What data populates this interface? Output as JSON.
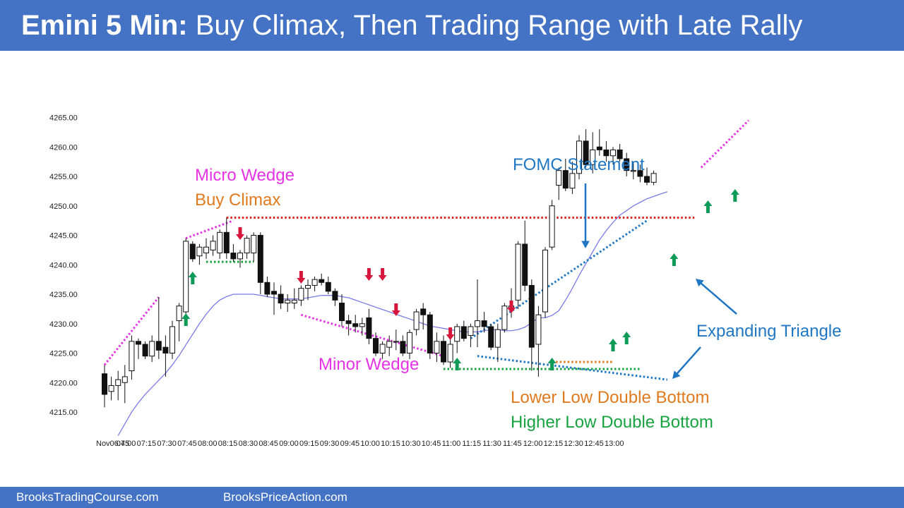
{
  "header": {
    "title_bold": "Emini 5 Min:",
    "title_rest": " Buy Climax, Then Trading Range with Late Rally"
  },
  "footer": {
    "left": "BrooksTradingCourse.com",
    "right": "BrooksPriceAction.com"
  },
  "colors": {
    "banner": "#4472c4",
    "moving_average": "#7b7be8",
    "bull_arrow": "#0e9a57",
    "bear_arrow": "#d6163a",
    "magenta": "#e633e6",
    "orange": "#e07a1f",
    "green": "#17a340",
    "blue": "#1f77c4",
    "red": "#e01e1e"
  },
  "annotations": {
    "micro_wedge": "Micro Wedge",
    "buy_climax": "Buy Climax",
    "minor_wedge": "Minor Wedge",
    "fomc": "FOMC Statement",
    "expanding_triangle": "Expanding Triangle",
    "lower_low_db": "Lower Low Double Bottom",
    "higher_low_db": "Higher Low Double Bottom"
  },
  "chart_data": {
    "type": "candlestick",
    "timeframe_minutes": 5,
    "ylim": [
      4212,
      4266
    ],
    "yticks": [
      4215,
      4220,
      4225,
      4230,
      4235,
      4240,
      4245,
      4250,
      4255,
      4260,
      4265
    ],
    "ytick_labels": [
      "4215.00",
      "4220.00",
      "4225.00",
      "4230.00",
      "4235.00",
      "4240.00",
      "4245.00",
      "4250.00",
      "4255.00",
      "4260.00",
      "4265.00"
    ],
    "xticks": [
      "Nov06:45",
      "07:00",
      "07:15",
      "07:30",
      "07:45",
      "08:00",
      "08:15",
      "08:30",
      "08:45",
      "09:00",
      "09:15",
      "09:30",
      "09:45",
      "10:00",
      "10:15",
      "10:30",
      "10:45",
      "11:00",
      "11:15",
      "11:30",
      "11:45",
      "12:00",
      "12:15",
      "12:30",
      "12:45",
      "13:00"
    ],
    "candles": [
      {
        "o": 4221.5,
        "h": 4223.0,
        "l": 4215.8,
        "c": 4218.0
      },
      {
        "o": 4218.5,
        "h": 4221.0,
        "l": 4217.0,
        "c": 4219.5
      },
      {
        "o": 4219.5,
        "h": 4222.0,
        "l": 4217.0,
        "c": 4220.5
      },
      {
        "o": 4220.0,
        "h": 4223.0,
        "l": 4216.5,
        "c": 4221.0
      },
      {
        "o": 4222.0,
        "h": 4228.0,
        "l": 4220.5,
        "c": 4227.0
      },
      {
        "o": 4227.0,
        "h": 4227.5,
        "l": 4224.0,
        "c": 4226.5
      },
      {
        "o": 4226.5,
        "h": 4227.0,
        "l": 4224.0,
        "c": 4224.5
      },
      {
        "o": 4224.5,
        "h": 4228.0,
        "l": 4223.5,
        "c": 4227.0
      },
      {
        "o": 4227.0,
        "h": 4234.5,
        "l": 4224.0,
        "c": 4225.5
      },
      {
        "o": 4226.0,
        "h": 4228.0,
        "l": 4221.0,
        "c": 4225.0
      },
      {
        "o": 4225.0,
        "h": 4230.5,
        "l": 4224.0,
        "c": 4229.5
      },
      {
        "o": 4230.5,
        "h": 4233.5,
        "l": 4227.0,
        "c": 4233.0
      },
      {
        "o": 4232.0,
        "h": 4244.5,
        "l": 4231.5,
        "c": 4244.0
      },
      {
        "o": 4243.5,
        "h": 4244.0,
        "l": 4240.5,
        "c": 4241.0
      },
      {
        "o": 4241.5,
        "h": 4243.5,
        "l": 4240.0,
        "c": 4243.0
      },
      {
        "o": 4242.0,
        "h": 4244.5,
        "l": 4241.0,
        "c": 4243.0
      },
      {
        "o": 4242.5,
        "h": 4245.0,
        "l": 4241.5,
        "c": 4244.0
      },
      {
        "o": 4242.0,
        "h": 4246.0,
        "l": 4241.0,
        "c": 4245.5
      },
      {
        "o": 4245.5,
        "h": 4248.0,
        "l": 4241.0,
        "c": 4242.0
      },
      {
        "o": 4242.0,
        "h": 4243.5,
        "l": 4240.5,
        "c": 4241.0
      },
      {
        "o": 4241.0,
        "h": 4242.5,
        "l": 4239.5,
        "c": 4242.0
      },
      {
        "o": 4242.0,
        "h": 4245.0,
        "l": 4241.0,
        "c": 4244.5
      },
      {
        "o": 4242.0,
        "h": 4245.5,
        "l": 4240.5,
        "c": 4245.0
      },
      {
        "o": 4245.0,
        "h": 4245.5,
        "l": 4235.0,
        "c": 4237.0
      },
      {
        "o": 4237.0,
        "h": 4238.0,
        "l": 4234.5,
        "c": 4235.0
      },
      {
        "o": 4235.5,
        "h": 4237.0,
        "l": 4231.5,
        "c": 4235.0
      },
      {
        "o": 4235.0,
        "h": 4236.5,
        "l": 4232.5,
        "c": 4233.5
      },
      {
        "o": 4233.5,
        "h": 4235.0,
        "l": 4232.0,
        "c": 4234.0
      },
      {
        "o": 4233.5,
        "h": 4236.0,
        "l": 4232.5,
        "c": 4234.0
      },
      {
        "o": 4234.0,
        "h": 4236.5,
        "l": 4233.0,
        "c": 4236.0
      },
      {
        "o": 4236.0,
        "h": 4237.5,
        "l": 4234.0,
        "c": 4236.5
      },
      {
        "o": 4236.5,
        "h": 4238.0,
        "l": 4235.5,
        "c": 4237.5
      },
      {
        "o": 4237.5,
        "h": 4238.5,
        "l": 4236.5,
        "c": 4237.0
      },
      {
        "o": 4237.0,
        "h": 4238.0,
        "l": 4235.0,
        "c": 4235.5
      },
      {
        "o": 4235.5,
        "h": 4236.0,
        "l": 4233.0,
        "c": 4234.0
      },
      {
        "o": 4233.5,
        "h": 4235.0,
        "l": 4229.5,
        "c": 4230.5
      },
      {
        "o": 4230.5,
        "h": 4231.5,
        "l": 4228.0,
        "c": 4230.0
      },
      {
        "o": 4230.0,
        "h": 4231.5,
        "l": 4228.5,
        "c": 4229.5
      },
      {
        "o": 4229.5,
        "h": 4231.0,
        "l": 4228.0,
        "c": 4230.0
      },
      {
        "o": 4231.0,
        "h": 4232.5,
        "l": 4226.5,
        "c": 4227.5
      },
      {
        "o": 4227.5,
        "h": 4228.5,
        "l": 4224.5,
        "c": 4225.0
      },
      {
        "o": 4225.0,
        "h": 4227.0,
        "l": 4224.0,
        "c": 4226.5
      },
      {
        "o": 4226.0,
        "h": 4228.0,
        "l": 4224.5,
        "c": 4227.0
      },
      {
        "o": 4227.0,
        "h": 4229.0,
        "l": 4225.5,
        "c": 4227.0
      },
      {
        "o": 4227.0,
        "h": 4228.0,
        "l": 4224.5,
        "c": 4225.0
      },
      {
        "o": 4225.0,
        "h": 4229.0,
        "l": 4224.0,
        "c": 4228.5
      },
      {
        "o": 4229.0,
        "h": 4232.5,
        "l": 4228.0,
        "c": 4232.0
      },
      {
        "o": 4232.5,
        "h": 4233.5,
        "l": 4229.0,
        "c": 4231.5
      },
      {
        "o": 4231.5,
        "h": 4232.0,
        "l": 4224.0,
        "c": 4225.0
      },
      {
        "o": 4225.0,
        "h": 4228.5,
        "l": 4223.5,
        "c": 4227.0
      },
      {
        "o": 4227.0,
        "h": 4228.0,
        "l": 4223.0,
        "c": 4223.5
      },
      {
        "o": 4223.5,
        "h": 4227.5,
        "l": 4222.5,
        "c": 4226.5
      },
      {
        "o": 4227.0,
        "h": 4230.0,
        "l": 4225.0,
        "c": 4229.5
      },
      {
        "o": 4229.5,
        "h": 4230.5,
        "l": 4227.0,
        "c": 4227.5
      },
      {
        "o": 4228.0,
        "h": 4230.0,
        "l": 4226.0,
        "c": 4229.5
      },
      {
        "o": 4229.5,
        "h": 4237.5,
        "l": 4226.0,
        "c": 4230.5
      },
      {
        "o": 4230.5,
        "h": 4232.0,
        "l": 4228.5,
        "c": 4229.5
      },
      {
        "o": 4229.5,
        "h": 4230.0,
        "l": 4225.5,
        "c": 4226.0
      },
      {
        "o": 4226.0,
        "h": 4230.0,
        "l": 4223.5,
        "c": 4229.0
      },
      {
        "o": 4229.0,
        "h": 4233.5,
        "l": 4228.5,
        "c": 4233.0
      },
      {
        "o": 4232.5,
        "h": 4236.0,
        "l": 4231.0,
        "c": 4233.0
      },
      {
        "o": 4234.0,
        "h": 4244.0,
        "l": 4232.5,
        "c": 4243.5
      },
      {
        "o": 4243.5,
        "h": 4247.5,
        "l": 4235.5,
        "c": 4236.5
      },
      {
        "o": 4236.5,
        "h": 4237.5,
        "l": 4222.0,
        "c": 4226.0
      },
      {
        "o": 4226.5,
        "h": 4233.0,
        "l": 4221.0,
        "c": 4231.5
      },
      {
        "o": 4232.0,
        "h": 4243.0,
        "l": 4231.0,
        "c": 4242.5
      },
      {
        "o": 4243.0,
        "h": 4251.0,
        "l": 4242.5,
        "c": 4250.0
      },
      {
        "o": 4253.5,
        "h": 4256.5,
        "l": 4251.0,
        "c": 4256.0
      },
      {
        "o": 4256.0,
        "h": 4258.0,
        "l": 4252.5,
        "c": 4253.0
      },
      {
        "o": 4253.0,
        "h": 4257.5,
        "l": 4252.0,
        "c": 4255.5
      },
      {
        "o": 4255.5,
        "h": 4262.0,
        "l": 4254.5,
        "c": 4261.0
      },
      {
        "o": 4261.0,
        "h": 4263.0,
        "l": 4256.5,
        "c": 4257.0
      },
      {
        "o": 4257.0,
        "h": 4262.5,
        "l": 4255.5,
        "c": 4259.5
      },
      {
        "o": 4260.0,
        "h": 4263.0,
        "l": 4258.5,
        "c": 4259.5
      },
      {
        "o": 4259.5,
        "h": 4261.0,
        "l": 4257.5,
        "c": 4258.5
      },
      {
        "o": 4258.5,
        "h": 4260.0,
        "l": 4257.0,
        "c": 4259.5
      },
      {
        "o": 4259.5,
        "h": 4260.5,
        "l": 4257.5,
        "c": 4258.0
      },
      {
        "o": 4258.0,
        "h": 4259.0,
        "l": 4255.0,
        "c": 4256.0
      },
      {
        "o": 4256.0,
        "h": 4257.5,
        "l": 4254.5,
        "c": 4256.0
      },
      {
        "o": 4256.0,
        "h": 4257.0,
        "l": 4254.0,
        "c": 4255.0
      },
      {
        "o": 4255.0,
        "h": 4256.5,
        "l": 4253.5,
        "c": 4254.0
      },
      {
        "o": 4254.0,
        "h": 4256.0,
        "l": 4253.5,
        "c": 4255.5
      }
    ],
    "moving_average": [
      4211.0,
      4213.0,
      4215.0,
      4216.6,
      4218.0,
      4219.2,
      4220.4,
      4221.6,
      4223.0,
      4224.6,
      4226.4,
      4228.2,
      4230.0,
      4231.6,
      4233.0,
      4234.0,
      4234.6,
      4235.0,
      4235.0,
      4235.0,
      4235.0,
      4234.8,
      4234.6,
      4234.4,
      4234.2,
      4234.2,
      4234.2,
      4234.2,
      4234.4,
      4234.6,
      4234.8,
      4234.8,
      4234.8,
      4234.6,
      4234.4,
      4234.0,
      4233.6,
      4233.2,
      4232.8,
      4232.4,
      4232.0,
      4231.6,
      4231.2,
      4230.8,
      4230.4,
      4230.0,
      4229.6,
      4229.4,
      4229.2,
      4229.0,
      4228.8,
      4228.6,
      4228.6,
      4228.6,
      4228.8,
      4229.0,
      4229.0,
      4228.8,
      4228.8,
      4229.0,
      4229.4,
      4230.2,
      4231.0,
      4231.0,
      4231.4,
      4232.2,
      4234.0,
      4236.0,
      4238.2,
      4240.2,
      4242.2,
      4244.2,
      4245.8,
      4247.2,
      4248.4,
      4249.2,
      4250.0,
      4250.6,
      4251.2,
      4251.6,
      4252.0,
      4252.4
    ]
  }
}
